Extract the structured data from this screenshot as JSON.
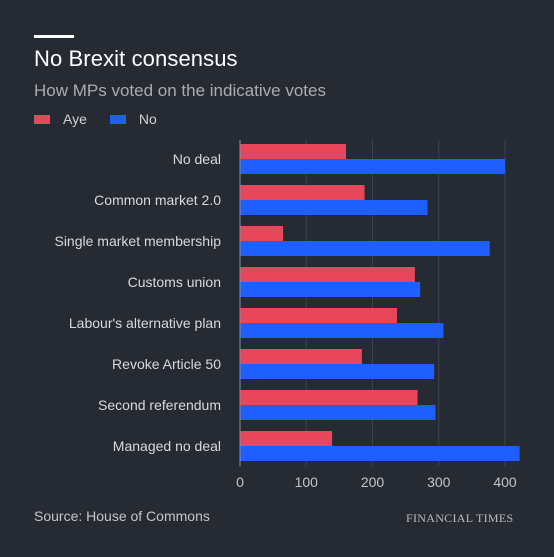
{
  "header": {
    "title": "No Brexit consensus",
    "subtitle": "How MPs voted on the indicative votes"
  },
  "legend": [
    {
      "label": "Aye",
      "color": "#e8465a"
    },
    {
      "label": "No",
      "color": "#1f5fff"
    }
  ],
  "footer": {
    "source": "Source: House of Commons",
    "brand": "FINANCIAL TIMES"
  },
  "chart_data": {
    "type": "bar",
    "orientation": "horizontal",
    "categories": [
      "No deal",
      "Common market 2.0",
      "Single market membership",
      "Customs union",
      "Labour's alternative plan",
      "Revoke Article 50",
      "Second referendum",
      "Managed no deal"
    ],
    "series": [
      {
        "name": "Aye",
        "color": "#e8465a",
        "values": [
          160,
          188,
          65,
          264,
          237,
          184,
          268,
          139
        ]
      },
      {
        "name": "No",
        "color": "#1f5fff",
        "values": [
          400,
          283,
          377,
          272,
          307,
          293,
          295,
          422
        ]
      }
    ],
    "xlim": [
      0,
      425
    ],
    "xticks": [
      0,
      100,
      200,
      300,
      400
    ],
    "grid": true,
    "legend_position": "top-left"
  }
}
